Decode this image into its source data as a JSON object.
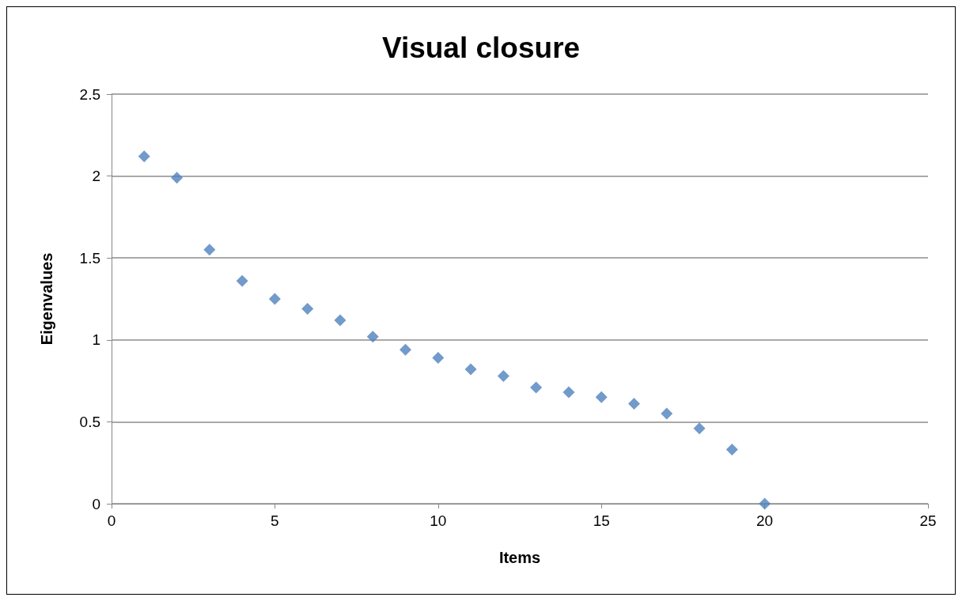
{
  "chart_data": {
    "type": "scatter",
    "title": "Visual closure",
    "xlabel": "Items",
    "ylabel": "Eigenvalues",
    "x": [
      1,
      2,
      3,
      4,
      5,
      6,
      7,
      8,
      9,
      10,
      11,
      12,
      13,
      14,
      15,
      16,
      17,
      18,
      19,
      20
    ],
    "series": [
      {
        "color": "#4f81bd",
        "values": [
          2.12,
          1.99,
          1.55,
          1.36,
          1.25,
          1.19,
          1.12,
          1.02,
          0.94,
          0.89,
          0.82,
          0.78,
          0.71,
          0.68,
          0.65,
          0.61,
          0.55,
          0.46,
          0.33,
          0
        ]
      }
    ],
    "xlim": [
      0,
      25
    ],
    "xticks": [
      0,
      5,
      10,
      15,
      20,
      25
    ],
    "ylim": [
      0,
      2.5
    ],
    "yticks": [
      0,
      0.5,
      1,
      1.5,
      2,
      2.5
    ],
    "grid": "y",
    "marker": "diamond"
  }
}
